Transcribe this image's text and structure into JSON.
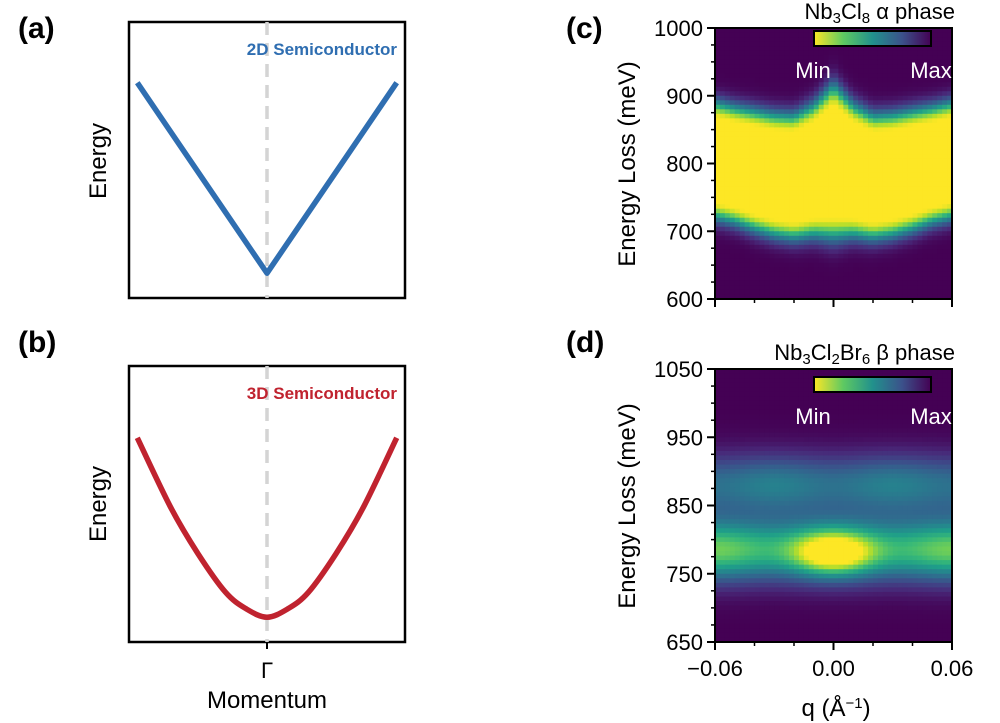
{
  "chart_data": [
    {
      "panel": "(a)",
      "type": "line",
      "title": "",
      "annotation": "2D Semiconductor",
      "xlabel": "",
      "ylabel": "Energy",
      "xlim": [
        -1.0,
        1.0
      ],
      "ylim": [
        0.0,
        1.0
      ],
      "x": [
        -0.94,
        -0.6,
        -0.3,
        0.0,
        0.3,
        0.6,
        0.94
      ],
      "y": [
        0.78,
        0.53,
        0.31,
        0.09,
        0.31,
        0.53,
        0.78
      ],
      "color": "#2f6eb1",
      "reference_line": {
        "x": 0.0,
        "style": "dashed",
        "color": "#d4d4d4"
      },
      "ticks": "none"
    },
    {
      "panel": "(b)",
      "type": "line",
      "title": "",
      "annotation": "3D Semiconductor",
      "xlabel": "Momentum",
      "ylabel": "Energy",
      "xticklabels": [
        "Γ"
      ],
      "xlim": [
        -1.0,
        1.0
      ],
      "ylim": [
        0.0,
        1.0
      ],
      "x": [
        -0.94,
        -0.7,
        -0.5,
        -0.3,
        -0.15,
        0.0,
        0.15,
        0.3,
        0.5,
        0.7,
        0.94
      ],
      "y": [
        0.74,
        0.49,
        0.32,
        0.18,
        0.12,
        0.09,
        0.12,
        0.18,
        0.32,
        0.49,
        0.74
      ],
      "color": "#c0232f",
      "reference_line": {
        "x": 0.0,
        "style": "dashed",
        "color": "#d4d4d4"
      }
    },
    {
      "panel": "(c)",
      "type": "heatmap",
      "title_main": "Nb",
      "title_sub1": "3",
      "title_mid": "Cl",
      "title_sub2": "8",
      "title_tail": " α phase",
      "xlabel": "",
      "ylabel": "Energy Loss (meV)",
      "xlim": [
        -0.06,
        0.06
      ],
      "ylim": [
        600,
        1000
      ],
      "yticks": [
        600,
        700,
        800,
        900,
        1000
      ],
      "yticklabels": [
        "600",
        "700",
        "800",
        "900",
        "1000"
      ],
      "colormap": "viridis",
      "colorbar": {
        "min_label": "Min",
        "max_label": "Max"
      },
      "peak_center_meV": [
        805,
        798,
        790,
        783,
        780,
        790,
        803,
        790,
        780,
        783,
        790,
        798,
        805
      ],
      "peak_halfwidth_meV": [
        62,
        62,
        64,
        65,
        66,
        70,
        82,
        70,
        66,
        65,
        64,
        62,
        62
      ]
    },
    {
      "panel": "(d)",
      "type": "heatmap",
      "title_main": "Nb",
      "title_sub1": "3",
      "title_mid": "Cl",
      "title_sub2": "2",
      "title_mid2": "Br",
      "title_sub3": "6",
      "title_tail": " β phase",
      "xlabel": "q (Å",
      "xlabel_sup": "−1",
      "xlabel_tail": ")",
      "ylabel": "Energy Loss (meV)",
      "xlim": [
        -0.06,
        0.06
      ],
      "ylim": [
        650,
        1050
      ],
      "xticks": [
        -0.06,
        0.0,
        0.06
      ],
      "xticklabels": [
        "−0.06",
        "0.00",
        "0.06"
      ],
      "yticks": [
        650,
        750,
        850,
        950,
        1050
      ],
      "yticklabels": [
        "650",
        "750",
        "850",
        "950",
        "1050"
      ],
      "colormap": "viridis",
      "colorbar": {
        "min_label": "Min",
        "max_label": "Max"
      },
      "bands": [
        {
          "center_meV": 880,
          "halfwidth_meV": 42,
          "intensity": 0.4
        },
        {
          "center_meV": 785,
          "halfwidth_meV": 42,
          "intensity": 0.72
        }
      ],
      "hotspot": {
        "q": 0.0,
        "E_meV": 780,
        "intensity": 1.0
      }
    }
  ]
}
